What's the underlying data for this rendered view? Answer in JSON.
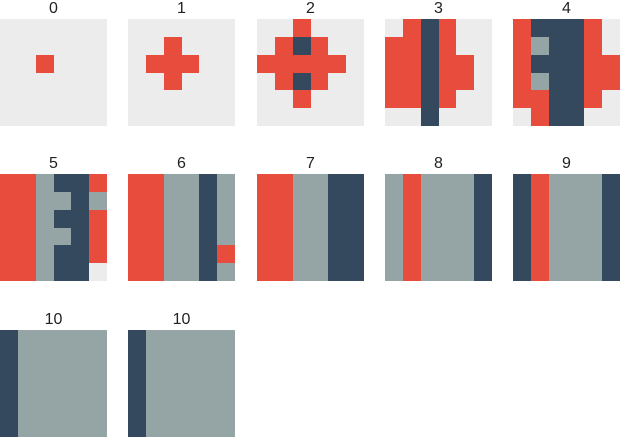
{
  "palette": {
    "0": "#ececec",
    "1": "#e74c3c",
    "2": "#34495e",
    "3": "#95a5a6"
  },
  "panels": [
    {
      "label": "0",
      "grid": [
        "000000",
        "000000",
        "001000",
        "000000",
        "000000",
        "000000"
      ]
    },
    {
      "label": "1",
      "grid": [
        "000000",
        "001000",
        "011100",
        "001000",
        "000000",
        "000000"
      ]
    },
    {
      "label": "2",
      "grid": [
        "001000",
        "012100",
        "111110",
        "012100",
        "001000",
        "000000"
      ]
    },
    {
      "label": "3",
      "grid": [
        "012100",
        "112100",
        "112110",
        "112110",
        "112100",
        "002000"
      ]
    },
    {
      "label": "4",
      "grid": [
        "122210",
        "132210",
        "122211",
        "132211",
        "112210",
        "012200"
      ]
    },
    {
      "label": "5",
      "grid": [
        "113221",
        "113323",
        "113221",
        "113321",
        "113221",
        "113220"
      ]
    },
    {
      "label": "6",
      "grid": [
        "113323",
        "113323",
        "113323",
        "113323",
        "113321",
        "113323"
      ]
    },
    {
      "label": "7",
      "grid": [
        "113322",
        "113322",
        "113322",
        "113322",
        "113322",
        "113322"
      ]
    },
    {
      "label": "8",
      "grid": [
        "313332",
        "313332",
        "313332",
        "313332",
        "313332",
        "313332"
      ]
    },
    {
      "label": "9",
      "grid": [
        "213332",
        "213332",
        "213332",
        "213332",
        "213332",
        "213332"
      ]
    },
    {
      "label": "10",
      "grid": [
        "233333",
        "233333",
        "233333",
        "233333",
        "233333",
        "233333"
      ]
    },
    {
      "label": "10",
      "grid": [
        "233333",
        "233333",
        "233333",
        "233333",
        "233333",
        "233333"
      ]
    }
  ]
}
